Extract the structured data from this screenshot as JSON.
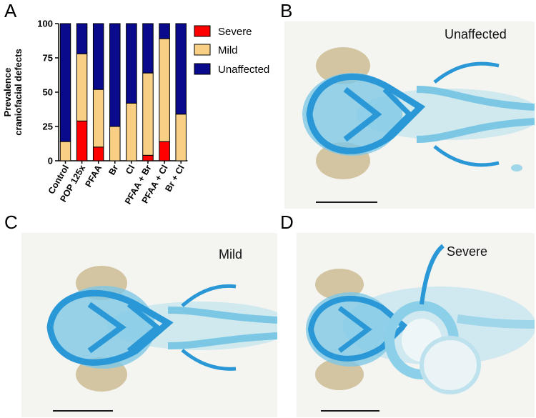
{
  "panels": {
    "a": "A",
    "b": "B",
    "c": "C",
    "d": "D"
  },
  "photo_labels": {
    "b": "Unaffected",
    "c": "Mild",
    "d": "Severe"
  },
  "chart_data": {
    "type": "bar",
    "stacked": true,
    "title": "",
    "xlabel": "",
    "ylabel": "Prevalence craniofacial defects",
    "ylabel_lines": [
      "Prevalence",
      "craniofacial defects"
    ],
    "ylim": [
      0,
      100
    ],
    "yticks": [
      "0",
      "25",
      "50",
      "75",
      "100"
    ],
    "legend_position": "right",
    "categories": [
      "Control",
      "POP 125x",
      "PFAA",
      "Br",
      "Cl",
      "PFAA + Br",
      "PFAA + Cl",
      "Br + Cl"
    ],
    "series": [
      {
        "name": "Severe",
        "color": "#ff0000",
        "values": [
          0,
          29,
          10,
          0,
          0,
          4,
          14,
          0
        ]
      },
      {
        "name": "Mild",
        "color": "#f8cf85",
        "values": [
          14,
          49,
          42,
          25,
          42,
          60,
          75,
          34
        ]
      },
      {
        "name": "Unaffected",
        "color": "#0a0a8c",
        "values": [
          86,
          22,
          48,
          75,
          58,
          36,
          11,
          66
        ]
      }
    ]
  }
}
